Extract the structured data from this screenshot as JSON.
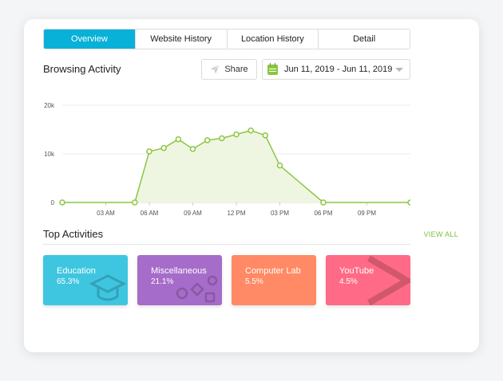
{
  "tabs": [
    {
      "label": "Overview",
      "active": true
    },
    {
      "label": "Website History",
      "active": false
    },
    {
      "label": "Location History",
      "active": false
    },
    {
      "label": "Detail",
      "active": false
    }
  ],
  "browsing": {
    "title": "Browsing Activity",
    "share_label": "Share",
    "date_range": "Jun 11, 2019 - Jun 11, 2019"
  },
  "chart_data": {
    "type": "area",
    "y_ticks": [
      "20k",
      "10k",
      "0"
    ],
    "ylim": [
      0,
      20000
    ],
    "x_tick_labels": [
      "03 AM",
      "06 AM",
      "09 AM",
      "12 PM",
      "03 PM",
      "06 PM",
      "09 PM"
    ],
    "x_tick_hours": [
      3,
      6,
      9,
      12,
      15,
      18,
      21
    ],
    "xlim": [
      0,
      24
    ],
    "grid": true,
    "points": [
      {
        "x": 0,
        "y": 0
      },
      {
        "x": 5,
        "y": 0
      },
      {
        "x": 6,
        "y": 10500
      },
      {
        "x": 7,
        "y": 11200
      },
      {
        "x": 8,
        "y": 13000
      },
      {
        "x": 9,
        "y": 11000
      },
      {
        "x": 10,
        "y": 12800
      },
      {
        "x": 11,
        "y": 13200
      },
      {
        "x": 12,
        "y": 14000
      },
      {
        "x": 13,
        "y": 14800
      },
      {
        "x": 14,
        "y": 13800
      },
      {
        "x": 15,
        "y": 7600
      },
      {
        "x": 18,
        "y": 0
      },
      {
        "x": 24,
        "y": 0
      }
    ],
    "line_color": "#8cc63f",
    "fill_color": "#eef6e2"
  },
  "top_activities": {
    "title": "Top Activities",
    "view_all_label": "VIEW ALL",
    "items": [
      {
        "name": "Education",
        "percent": "65.3%",
        "color": "#3ec6e0",
        "icon": "graduation-cap-icon"
      },
      {
        "name": "Miscellaneous",
        "percent": "21.1%",
        "color": "#a66cc9",
        "icon": "shapes-icon"
      },
      {
        "name": "Computer Lab",
        "percent": "5.5%",
        "color": "#ff8a65",
        "icon": "computer-icon"
      },
      {
        "name": "YouTube",
        "percent": "4.5%",
        "color": "#ff6b86",
        "icon": "play-icon"
      }
    ]
  }
}
